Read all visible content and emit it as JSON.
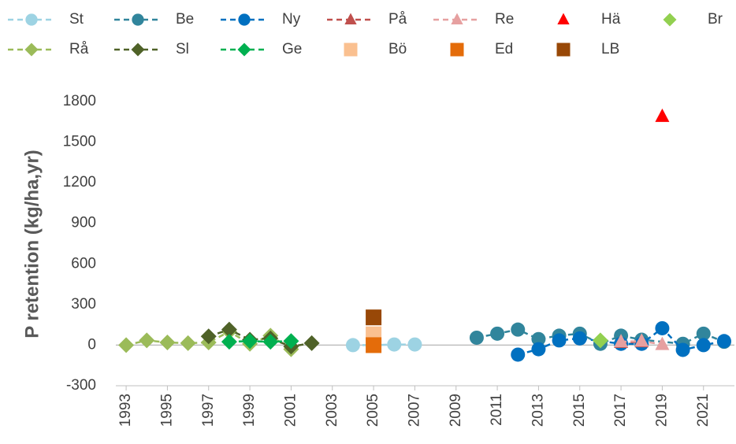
{
  "chart_data": {
    "type": "scatter",
    "y_label": "P retention (kg/ha,yr)",
    "xlim": [
      1992.5,
      2022.5
    ],
    "ylim": [
      -300,
      1800
    ],
    "xticks": [
      1993,
      1995,
      1997,
      1999,
      2001,
      2003,
      2005,
      2007,
      2009,
      2011,
      2013,
      2015,
      2017,
      2019,
      2021
    ],
    "yticks": [
      -300,
      0,
      300,
      600,
      900,
      1200,
      1500,
      1800
    ],
    "series": [
      {
        "name": "St",
        "color": "#9dd3e3",
        "marker": "circle",
        "dashed": true,
        "x": [
          2004,
          2005,
          2006,
          2007
        ],
        "values": [
          0,
          0,
          5,
          5
        ]
      },
      {
        "name": "Be",
        "color": "#31859c",
        "marker": "circle",
        "dashed": true,
        "x": [
          2010,
          2011,
          2012,
          2013,
          2014,
          2015,
          2016,
          2017,
          2018,
          2020,
          2021,
          2022
        ],
        "values": [
          55,
          85,
          115,
          45,
          70,
          85,
          10,
          70,
          40,
          10,
          85,
          25
        ]
      },
      {
        "name": "Ny",
        "color": "#0070c0",
        "marker": "circle",
        "dashed": true,
        "x": [
          2012,
          2013,
          2014,
          2015,
          2017,
          2018,
          2019,
          2020,
          2021,
          2022
        ],
        "values": [
          -70,
          -30,
          35,
          50,
          10,
          10,
          125,
          -35,
          0,
          30
        ]
      },
      {
        "name": "På",
        "color": "#c0504d",
        "marker": "triangle",
        "dashed": true,
        "x": [
          2017,
          2018
        ],
        "values": [
          20,
          25
        ]
      },
      {
        "name": "Re",
        "color": "#e6a0a0",
        "marker": "triangle",
        "dashed": true,
        "x": [
          2017,
          2018,
          2019
        ],
        "values": [
          25,
          30,
          5
        ]
      },
      {
        "name": "Hä",
        "color": "#ff0000",
        "marker": "triangle",
        "dashed": false,
        "x": [
          2019
        ],
        "values": [
          1690
        ]
      },
      {
        "name": "Br",
        "color": "#92d050",
        "marker": "diamond",
        "dashed": false,
        "x": [
          2016
        ],
        "values": [
          35
        ]
      },
      {
        "name": "Rå",
        "color": "#9bbb59",
        "marker": "diamond",
        "dashed": true,
        "x": [
          1993,
          1994,
          1995,
          1996,
          1997,
          1998,
          1999,
          2000,
          2001
        ],
        "values": [
          0,
          35,
          20,
          15,
          20,
          100,
          10,
          70,
          -30
        ]
      },
      {
        "name": "Sl",
        "color": "#4f6228",
        "marker": "diamond",
        "dashed": true,
        "x": [
          1997,
          1998,
          1999,
          2000,
          2001,
          2002
        ],
        "values": [
          65,
          115,
          40,
          50,
          -10,
          15
        ]
      },
      {
        "name": "Ge",
        "color": "#00b050",
        "marker": "diamond",
        "dashed": true,
        "x": [
          1998,
          1999,
          2000,
          2001
        ],
        "values": [
          25,
          30,
          25,
          30
        ]
      },
      {
        "name": "Bö",
        "color": "#fac090",
        "marker": "square",
        "dashed": false,
        "x": [
          2005
        ],
        "values": [
          80
        ]
      },
      {
        "name": "Ed",
        "color": "#e46c0a",
        "marker": "square",
        "dashed": false,
        "x": [
          2005
        ],
        "values": [
          0
        ]
      },
      {
        "name": "LB",
        "color": "#984807",
        "marker": "square",
        "dashed": false,
        "x": [
          2005
        ],
        "values": [
          205
        ]
      }
    ]
  }
}
